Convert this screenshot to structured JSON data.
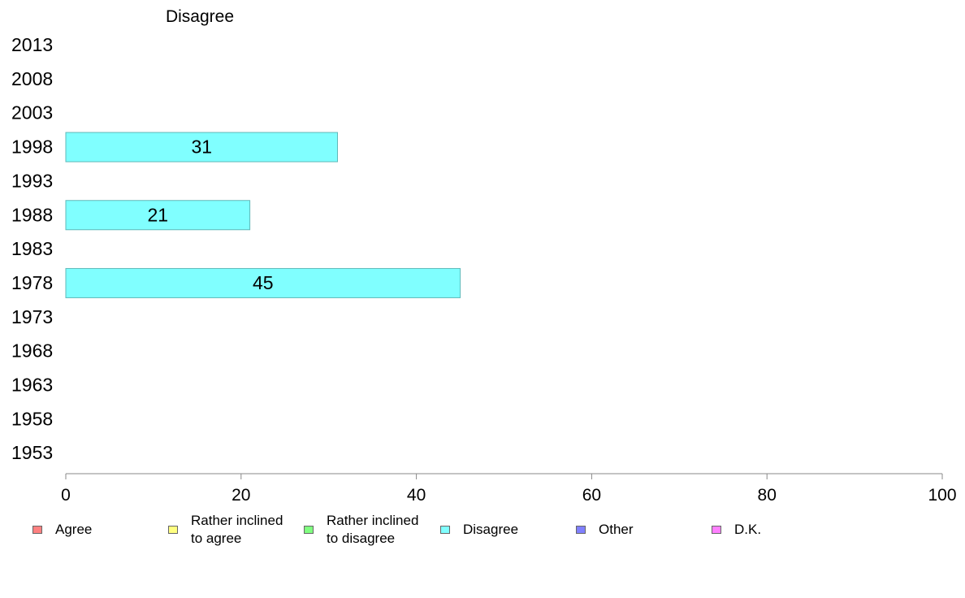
{
  "chart_data": {
    "type": "bar",
    "orientation": "horizontal",
    "title": "Disagree",
    "categories": [
      "2013",
      "2008",
      "2003",
      "1998",
      "1993",
      "1988",
      "1983",
      "1978",
      "1973",
      "1968",
      "1963",
      "1958",
      "1953"
    ],
    "series": [
      {
        "name": "Disagree",
        "color": "#80ffff",
        "values": [
          null,
          null,
          null,
          31,
          null,
          21,
          null,
          45,
          null,
          null,
          null,
          null,
          null
        ]
      }
    ],
    "xlim": [
      0,
      100
    ],
    "xticks": [
      "0",
      "20",
      "40",
      "60",
      "80",
      "100"
    ],
    "grid": false,
    "legend_position": "bottom"
  },
  "legend": [
    {
      "label": "Agree",
      "color": "#ff8080"
    },
    {
      "label": "Rather inclined\nto agree",
      "color": "#ffff80"
    },
    {
      "label": "Rather inclined\nto disagree",
      "color": "#80ff80"
    },
    {
      "label": "Disagree",
      "color": "#80ffff"
    },
    {
      "label": "Other",
      "color": "#8080ff"
    },
    {
      "label": "D.K.",
      "color": "#ff80ff"
    }
  ]
}
